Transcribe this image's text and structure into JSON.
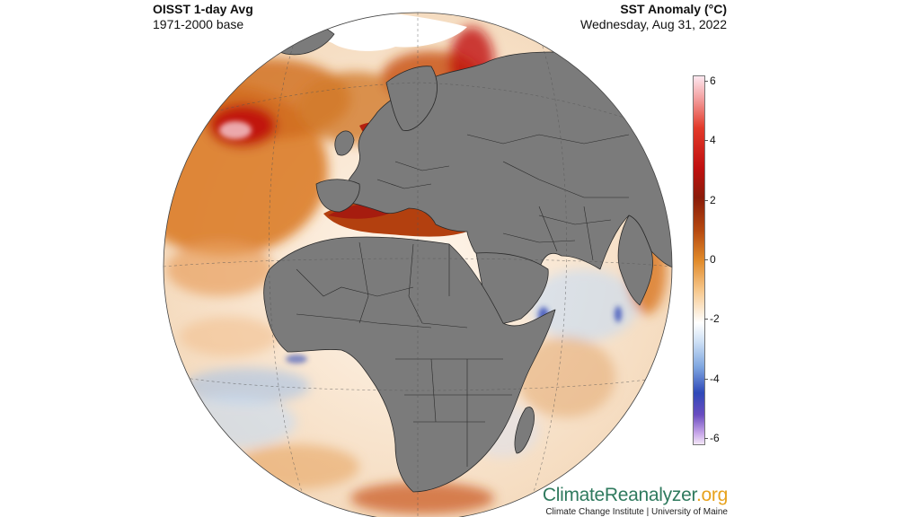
{
  "header": {
    "title_left": "OISST 1-day Avg",
    "subtitle_left": "1971-2000 base",
    "title_right": "SST Anomaly (°C)",
    "subtitle_right": "Wednesday, Aug 31, 2022"
  },
  "colorbar": {
    "min": -6,
    "max": 6,
    "ticks": [
      "6",
      "4",
      "2",
      "0",
      "-2",
      "-4",
      "-6"
    ],
    "tick_values": [
      6,
      4,
      2,
      0,
      -2,
      -4,
      -6
    ]
  },
  "colors": {
    "land": "#7b7b7b",
    "border": "#2a2a2a",
    "warm_strong": "#c01010",
    "warm": "#d9771f",
    "neutral": "#ffffff",
    "cool": "#7fa6e0",
    "ice": "#ffffff"
  },
  "footer": {
    "brand_part1": "ClimateReanalyzer",
    "brand_part2": ".org",
    "institution": "Climate Change Institute | University of Maine"
  }
}
